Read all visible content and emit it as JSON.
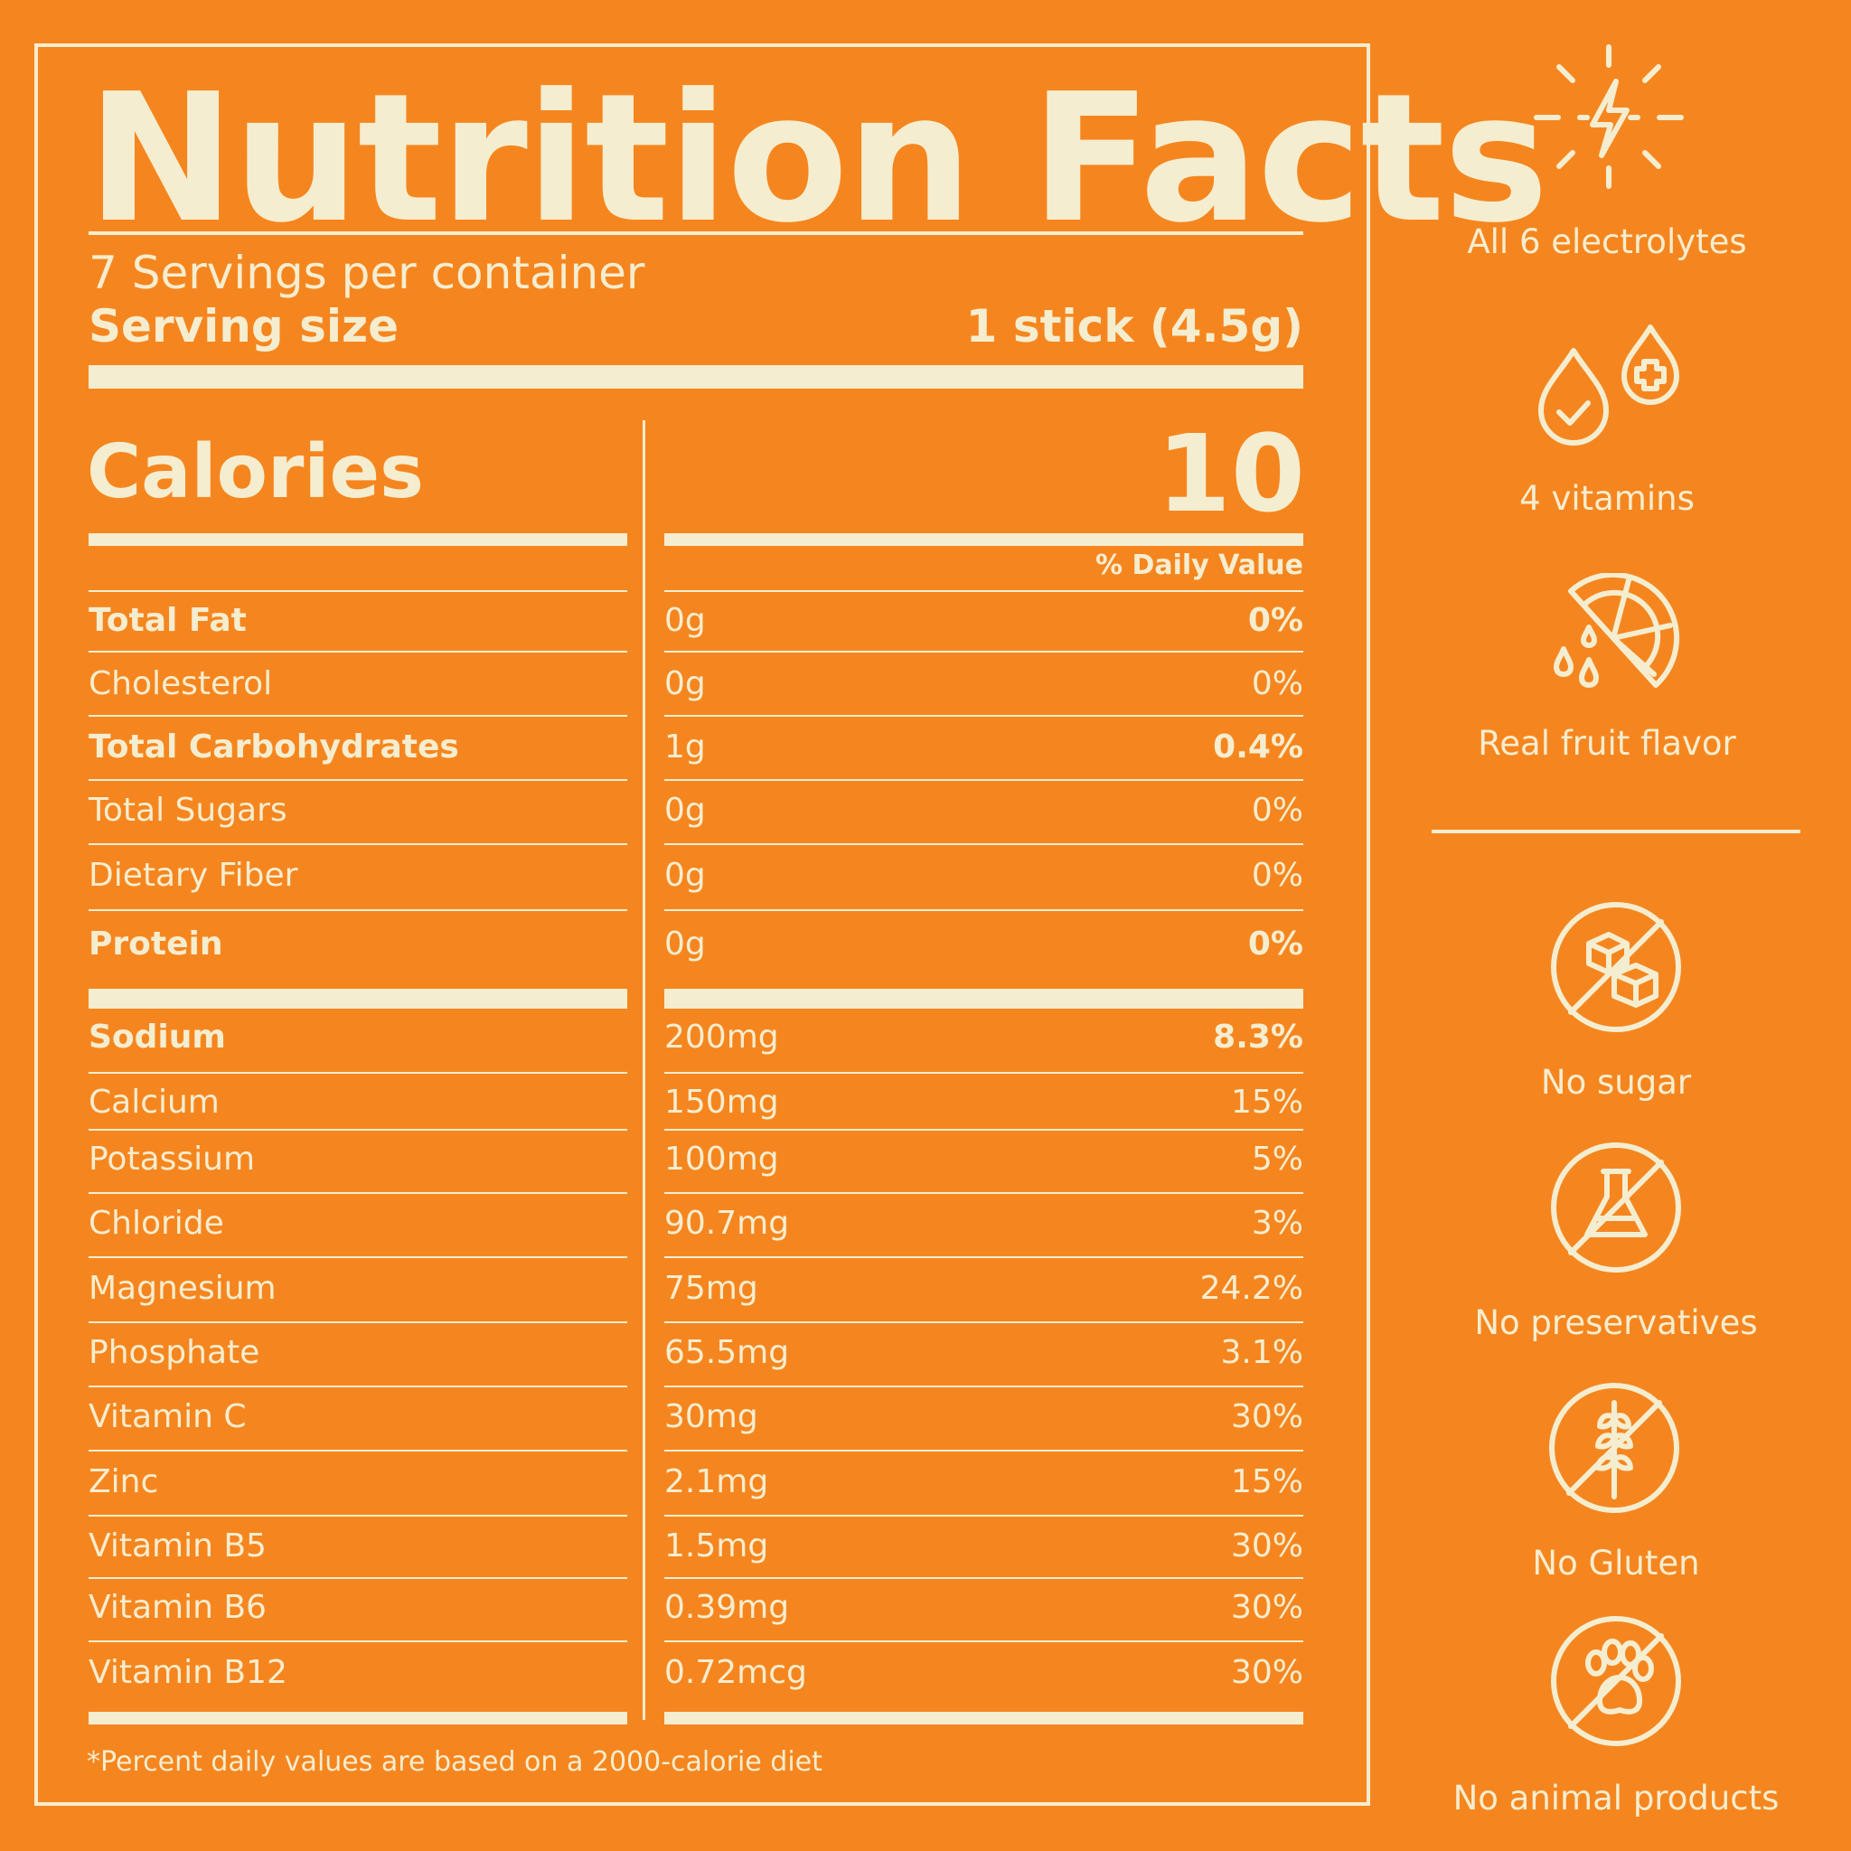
{
  "colors": {
    "background": "#F5861F",
    "foreground": "#F5EDCF"
  },
  "label": {
    "title": "Nutrition Facts",
    "servings_per_container": "7 Servings per container",
    "serving_size_label": "Serving size",
    "serving_size_value": "1 stick (4.5g)",
    "calories_label": "Calories",
    "calories_value": "10",
    "daily_value_header": "% Daily Value",
    "rows": [
      {
        "name": "Total Fat",
        "amount": "0g",
        "dv": "0%",
        "bold": true
      },
      {
        "name": "Cholesterol",
        "amount": "0g",
        "dv": "0%",
        "bold": false
      },
      {
        "name": "Total Carbohydrates",
        "amount": "1g",
        "dv": "0.4%",
        "bold": true
      },
      {
        "name": "Total Sugars",
        "amount": "0g",
        "dv": "0%",
        "bold": false
      },
      {
        "name": "Dietary Fiber",
        "amount": "0g",
        "dv": "0%",
        "bold": false
      },
      {
        "name": "Protein",
        "amount": "0g",
        "dv": "0%",
        "bold": true
      },
      {
        "name": "Sodium",
        "amount": "200mg",
        "dv": "8.3%",
        "bold": true
      },
      {
        "name": "Calcium",
        "amount": "150mg",
        "dv": "15%",
        "bold": false
      },
      {
        "name": "Potassium",
        "amount": "100mg",
        "dv": "5%",
        "bold": false
      },
      {
        "name": "Chloride",
        "amount": "90.7mg",
        "dv": "3%",
        "bold": false
      },
      {
        "name": "Magnesium",
        "amount": "75mg",
        "dv": "24.2%",
        "bold": false
      },
      {
        "name": "Phosphate",
        "amount": "65.5mg",
        "dv": "3.1%",
        "bold": false
      },
      {
        "name": "Vitamin C",
        "amount": "30mg",
        "dv": "30%",
        "bold": false
      },
      {
        "name": "Zinc",
        "amount": "2.1mg",
        "dv": "15%",
        "bold": false
      },
      {
        "name": "Vitamin B5",
        "amount": "1.5mg",
        "dv": "30%",
        "bold": false
      },
      {
        "name": "Vitamin B6",
        "amount": "0.39mg",
        "dv": "30%",
        "bold": false
      },
      {
        "name": "Vitamin B12",
        "amount": "0.72mcg",
        "dv": "30%",
        "bold": false
      }
    ],
    "footnote": "*Percent daily values are based on a 2000-calorie diet"
  },
  "features": {
    "positive": [
      {
        "icon": "lightning-burst-icon",
        "label": "All 6 electrolytes"
      },
      {
        "icon": "drops-check-plus-icon",
        "label": "4 vitamins"
      },
      {
        "icon": "citrus-slice-icon",
        "label": "Real fruit flavor"
      }
    ],
    "negative": [
      {
        "icon": "no-sugar-cubes-icon",
        "label": "No sugar"
      },
      {
        "icon": "no-flask-icon",
        "label": "No preservatives"
      },
      {
        "icon": "no-wheat-icon",
        "label": "No Gluten"
      },
      {
        "icon": "no-paw-icon",
        "label": "No animal products"
      }
    ]
  }
}
